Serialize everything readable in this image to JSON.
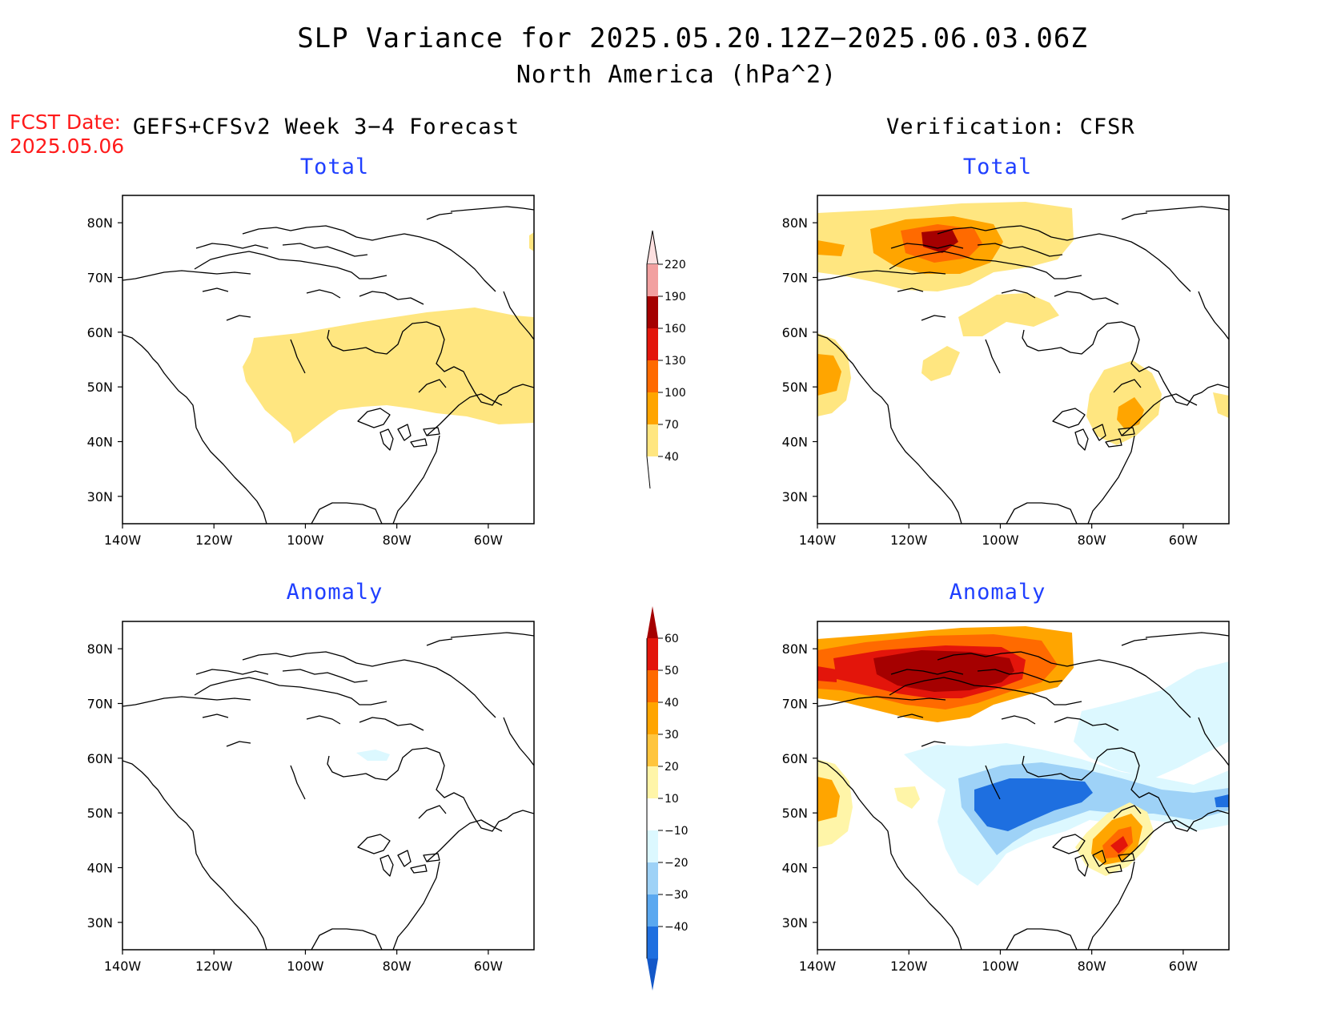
{
  "header": {
    "title": "SLP Variance for 2025.05.20.12Z−2025.06.03.06Z",
    "subtitle": "North America (hPa^2)",
    "fcst_label": "FCST Date:",
    "fcst_date": "2025.05.06",
    "left_column_title": "GEFS+CFSv2 Week 3−4 Forecast",
    "right_column_title": "Verification: CFSR"
  },
  "panels": {
    "forecast_total": {
      "title": "Total"
    },
    "verif_total": {
      "title": "Total"
    },
    "forecast_anomaly": {
      "title": "Anomaly"
    },
    "verif_anomaly": {
      "title": "Anomaly"
    }
  },
  "axes": {
    "lat_labels": [
      "80N",
      "70N",
      "60N",
      "50N",
      "40N",
      "30N"
    ],
    "lon_labels": [
      "140W",
      "120W",
      "100W",
      "80W",
      "60W"
    ],
    "lat_range": [
      25,
      85
    ],
    "lon_range": [
      -140,
      -50
    ]
  },
  "colorbars": {
    "total": {
      "labels": [
        "40",
        "70",
        "100",
        "130",
        "160",
        "190",
        "220"
      ],
      "colors": [
        "#ffe680",
        "#ffa500",
        "#ff6a00",
        "#e3150b",
        "#a50000",
        "#f2a0a0",
        "#fde0e0"
      ]
    },
    "anomaly": {
      "labels": [
        "60",
        "50",
        "40",
        "30",
        "20",
        "10",
        "−10",
        "−20",
        "−30",
        "−40"
      ],
      "colors": [
        "#a50000",
        "#e3150b",
        "#ff6a00",
        "#ffa500",
        "#ffc53d",
        "#fff5a8",
        "#ffffff",
        "#dcf8ff",
        "#9ed2f7",
        "#5aa8f0",
        "#1e6fe0",
        "#1458c8"
      ]
    }
  }
}
